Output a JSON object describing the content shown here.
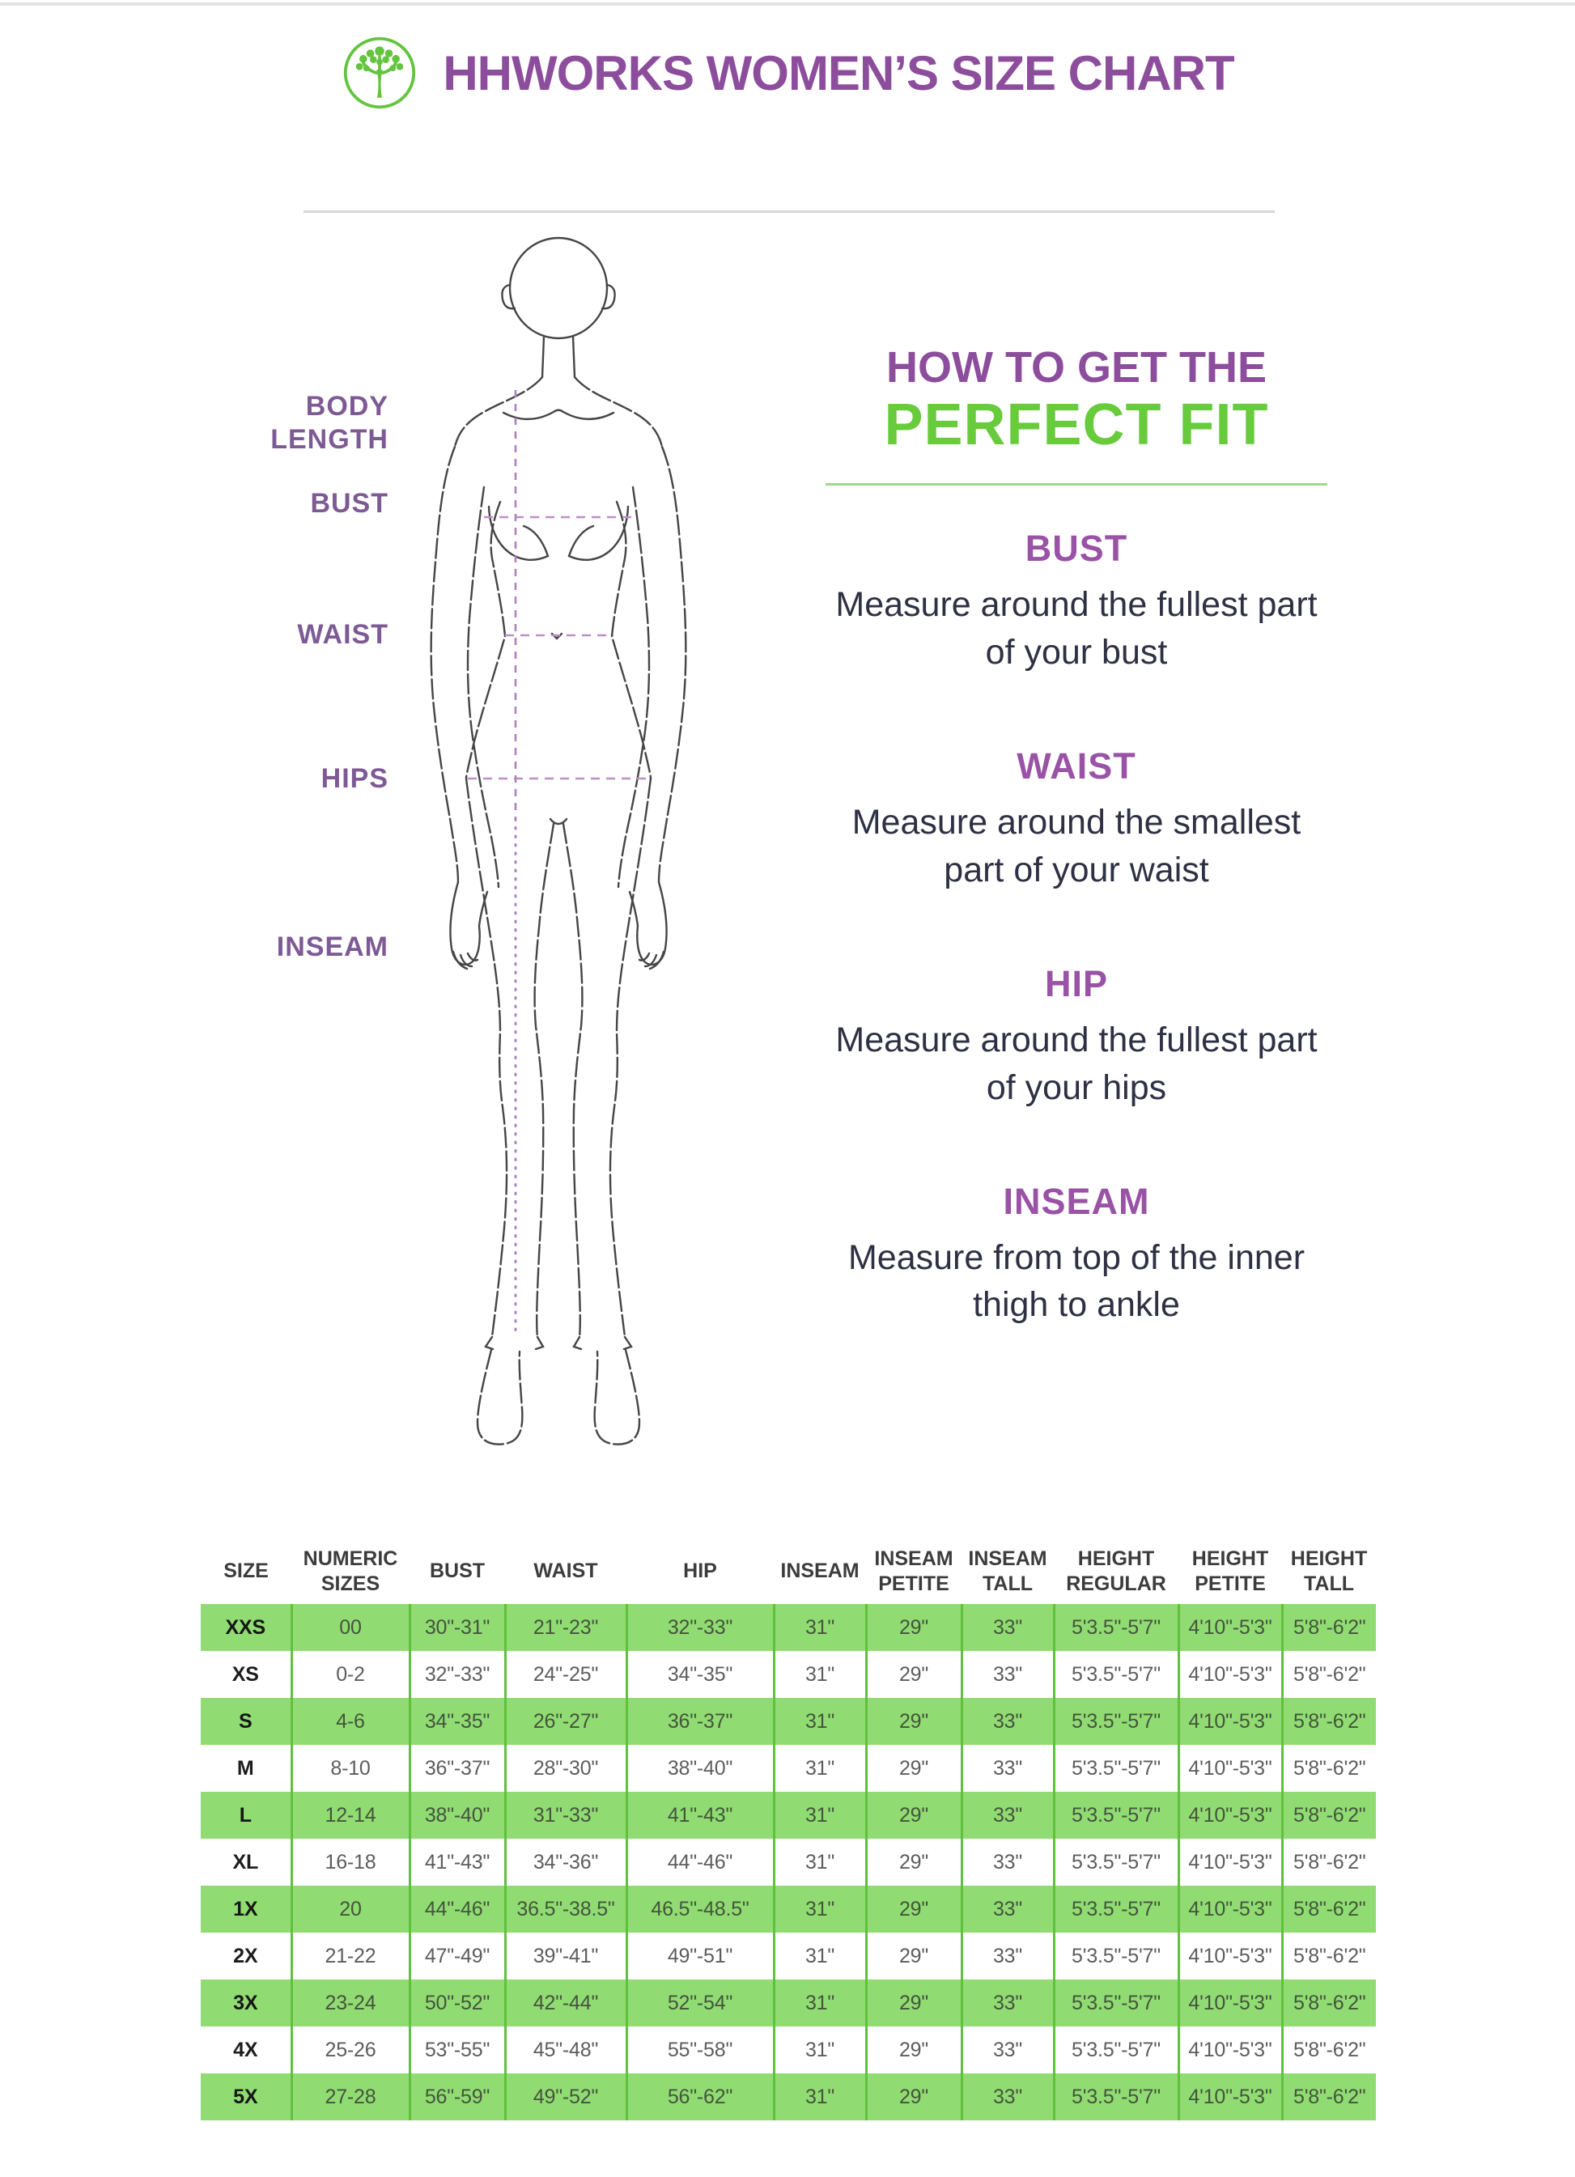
{
  "header": {
    "title": "HHWORKS WOMEN’S SIZE CHART",
    "logo_icon": "tree-in-circle"
  },
  "figure_labels": {
    "body_length": "BODY\nLENGTH",
    "bust": "BUST",
    "waist": "WAIST",
    "hips": "HIPS",
    "inseam": "INSEAM"
  },
  "fit_guide": {
    "heading_line1": "HOW TO GET THE",
    "heading_line2": "PERFECT FIT",
    "sections": [
      {
        "title": "BUST",
        "text": "Measure around the fullest part of your bust"
      },
      {
        "title": "WAIST",
        "text": "Measure around the smallest part of your waist"
      },
      {
        "title": "HIP",
        "text": "Measure around the fullest part of your hips"
      },
      {
        "title": "INSEAM",
        "text": "Measure from top of the inner thigh to ankle"
      }
    ]
  },
  "size_table": {
    "columns": [
      "SIZE",
      "NUMERIC SIZES",
      "BUST",
      "WAIST",
      "HIP",
      "INSEAM",
      "INSEAM PETITE",
      "INSEAM TALL",
      "HEIGHT REGULAR",
      "HEIGHT PETITE",
      "HEIGHT TALL"
    ],
    "rows": [
      [
        "XXS",
        "00",
        "30\"-31\"",
        "21\"-23\"",
        "32\"-33\"",
        "31\"",
        "29\"",
        "33\"",
        "5'3.5\"-5'7\"",
        "4'10\"-5'3\"",
        "5'8\"-6'2\""
      ],
      [
        "XS",
        "0-2",
        "32\"-33\"",
        "24\"-25\"",
        "34\"-35\"",
        "31\"",
        "29\"",
        "33\"",
        "5'3.5\"-5'7\"",
        "4'10\"-5'3\"",
        "5'8\"-6'2\""
      ],
      [
        "S",
        "4-6",
        "34\"-35\"",
        "26\"-27\"",
        "36\"-37\"",
        "31\"",
        "29\"",
        "33\"",
        "5'3.5\"-5'7\"",
        "4'10\"-5'3\"",
        "5'8\"-6'2\""
      ],
      [
        "M",
        "8-10",
        "36\"-37\"",
        "28\"-30\"",
        "38\"-40\"",
        "31\"",
        "29\"",
        "33\"",
        "5'3.5\"-5'7\"",
        "4'10\"-5'3\"",
        "5'8\"-6'2\""
      ],
      [
        "L",
        "12-14",
        "38\"-40\"",
        "31\"-33\"",
        "41\"-43\"",
        "31\"",
        "29\"",
        "33\"",
        "5'3.5\"-5'7\"",
        "4'10\"-5'3\"",
        "5'8\"-6'2\""
      ],
      [
        "XL",
        "16-18",
        "41\"-43\"",
        "34\"-36\"",
        "44\"-46\"",
        "31\"",
        "29\"",
        "33\"",
        "5'3.5\"-5'7\"",
        "4'10\"-5'3\"",
        "5'8\"-6'2\""
      ],
      [
        "1X",
        "20",
        "44\"-46\"",
        "36.5\"-38.5\"",
        "46.5\"-48.5\"",
        "31\"",
        "29\"",
        "33\"",
        "5'3.5\"-5'7\"",
        "4'10\"-5'3\"",
        "5'8\"-6'2\""
      ],
      [
        "2X",
        "21-22",
        "47\"-49\"",
        "39\"-41\"",
        "49\"-51\"",
        "31\"",
        "29\"",
        "33\"",
        "5'3.5\"-5'7\"",
        "4'10\"-5'3\"",
        "5'8\"-6'2\""
      ],
      [
        "3X",
        "23-24",
        "50\"-52\"",
        "42\"-44\"",
        "52\"-54\"",
        "31\"",
        "29\"",
        "33\"",
        "5'3.5\"-5'7\"",
        "4'10\"-5'3\"",
        "5'8\"-6'2\""
      ],
      [
        "4X",
        "25-26",
        "53\"-55\"",
        "45\"-48\"",
        "55\"-58\"",
        "31\"",
        "29\"",
        "33\"",
        "5'3.5\"-5'7\"",
        "4'10\"-5'3\"",
        "5'8\"-6'2\""
      ],
      [
        "5X",
        "27-28",
        "56\"-59\"",
        "49\"-52\"",
        "56\"-62\"",
        "31\"",
        "29\"",
        "33\"",
        "5'3.5\"-5'7\"",
        "4'10\"-5'3\"",
        "5'8\"-6'2\""
      ]
    ]
  },
  "colors": {
    "accent_purple": "#8c4d9c",
    "accent_green": "#68cb3c",
    "row_green": "#90dc72",
    "divider_green": "#5fc13d"
  }
}
